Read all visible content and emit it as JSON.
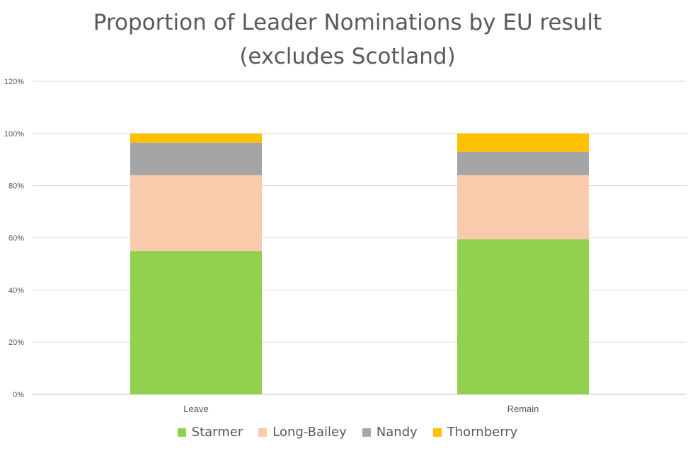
{
  "chart_data": {
    "type": "bar",
    "stacked": true,
    "title": "Proportion of Leader Nominations by EU result",
    "subtitle": "(excludes Scotland)",
    "categories": [
      "Leave",
      "Remain"
    ],
    "series": [
      {
        "name": "Starmer",
        "color": "#92d050",
        "values": [
          0.55,
          0.595
        ]
      },
      {
        "name": "Long-Bailey",
        "color": "#f8cbad",
        "values": [
          0.29,
          0.245
        ]
      },
      {
        "name": "Nandy",
        "color": "#a5a5a5",
        "values": [
          0.125,
          0.09
        ]
      },
      {
        "name": "Thornberry",
        "color": "#ffc000",
        "values": [
          0.035,
          0.07
        ]
      }
    ],
    "yticks": [
      "0%",
      "20%",
      "40%",
      "60%",
      "80%",
      "100%",
      "120%"
    ],
    "ylim": [
      0,
      1.2
    ],
    "grid": true,
    "legend_position": "bottom"
  }
}
